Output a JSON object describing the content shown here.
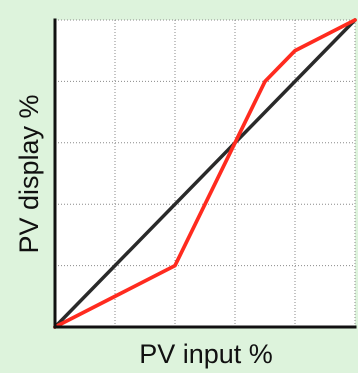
{
  "chart_data": {
    "type": "line",
    "title": "",
    "xlabel": "PV input %",
    "ylabel": "PV display %",
    "xlim": [
      0,
      100
    ],
    "ylim": [
      0,
      100
    ],
    "grid": true,
    "grid_style": "dotted",
    "x_gridlines": [
      20,
      40,
      60,
      80
    ],
    "y_gridlines": [
      20,
      40,
      60,
      80
    ],
    "series": [
      {
        "color": "#2a2a2a",
        "points": [
          [
            0,
            0
          ],
          [
            100,
            100
          ]
        ]
      },
      {
        "color": "#ff2b1f",
        "points": [
          [
            0,
            0
          ],
          [
            20,
            10
          ],
          [
            40,
            20
          ],
          [
            60,
            60
          ],
          [
            70,
            80
          ],
          [
            80,
            90
          ],
          [
            100,
            100
          ]
        ]
      }
    ]
  },
  "colors": {
    "background": "#ddf3dc",
    "plot_area": "#ffffff",
    "axis": "#111111",
    "grid": "#8a8a8a"
  }
}
